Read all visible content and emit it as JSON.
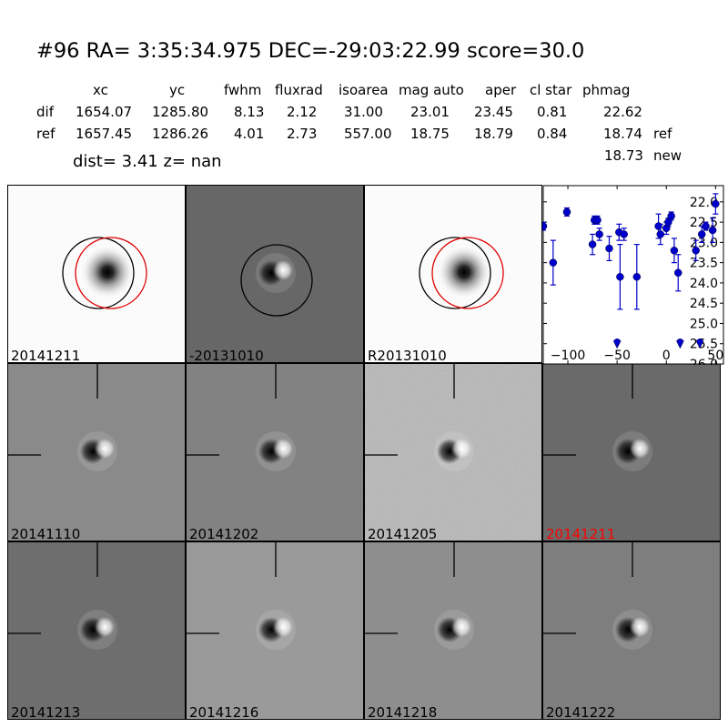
{
  "header": {
    "title": "#96   RA= 3:35:34.975 DEC=-29:03:22.99      score=30.0"
  },
  "table": {
    "columns": [
      "xc",
      "yc",
      "fwhm",
      "fluxrad",
      "isoarea",
      "mag auto",
      "aper",
      "cl star",
      "phmag"
    ],
    "rows": [
      {
        "label": "dif",
        "values": [
          "1654.07",
          "1285.80",
          "8.13",
          "2.12",
          "31.00",
          "23.01",
          "23.45",
          "0.81",
          "22.62"
        ],
        "suffix": ""
      },
      {
        "label": "ref",
        "values": [
          "1657.45",
          "1286.26",
          "4.01",
          "2.73",
          "557.00",
          "18.75",
          "18.79",
          "0.84",
          "18.74"
        ],
        "suffix": "ref"
      }
    ],
    "extra_row": {
      "value": "18.73",
      "suffix": "new"
    }
  },
  "dist_line": "dist=  3.41      z=   nan",
  "panels": [
    {
      "label": "20141211",
      "type": "ref",
      "label_color": "#000000"
    },
    {
      "label": "-20131010",
      "type": "diff-circle",
      "label_color": "#000000"
    },
    {
      "label": "R20131010",
      "type": "ref",
      "label_color": "#000000"
    },
    {
      "label": "20141110",
      "type": "diff",
      "label_color": "#000000"
    },
    {
      "label": "20141202",
      "type": "diff",
      "label_color": "#000000"
    },
    {
      "label": "20141205",
      "type": "diff-noisy",
      "label_color": "#000000"
    },
    {
      "label": "20141211",
      "type": "diff",
      "label_color": "#ff0000"
    },
    {
      "label": "20141213",
      "type": "diff",
      "label_color": "#000000"
    },
    {
      "label": "20141216",
      "type": "diff",
      "label_color": "#000000"
    },
    {
      "label": "20141218",
      "type": "diff-light",
      "label_color": "#000000"
    },
    {
      "label": "20141222",
      "type": "diff",
      "label_color": "#000000"
    }
  ],
  "chart_data": {
    "type": "scatter",
    "title": "",
    "xlabel": "",
    "ylabel": "",
    "xlim": [
      -125,
      58
    ],
    "ylim": [
      26.0,
      21.6
    ],
    "y_inverted": true,
    "xticks": [
      -100,
      -50,
      0,
      50
    ],
    "yticks": [
      22.0,
      22.5,
      23.0,
      23.5,
      24.0,
      24.5,
      25.0,
      25.5,
      26.0
    ],
    "ytick_labels": [
      "22.0",
      "22.5",
      "23.0",
      "23.5",
      "24.0",
      "24.5",
      "25.0",
      "25.5",
      "26.0"
    ],
    "color": "#0000cc",
    "points": [
      {
        "x": -125,
        "y": 22.6,
        "err": 0.1
      },
      {
        "x": -115,
        "y": 23.5,
        "err": 0.55
      },
      {
        "x": -101,
        "y": 22.25,
        "err": 0.1
      },
      {
        "x": -75,
        "y": 23.05,
        "err": 0.25
      },
      {
        "x": -73,
        "y": 22.45,
        "err": 0.1
      },
      {
        "x": -70,
        "y": 22.45,
        "err": 0.1
      },
      {
        "x": -68,
        "y": 22.8,
        "err": 0.15
      },
      {
        "x": -58,
        "y": 23.15,
        "err": 0.3
      },
      {
        "x": -48,
        "y": 22.75,
        "err": 0.2
      },
      {
        "x": -47,
        "y": 23.85,
        "err": 0.8
      },
      {
        "x": -43,
        "y": 22.8,
        "err": 0.15
      },
      {
        "x": -30,
        "y": 23.85,
        "err": 0.8
      },
      {
        "x": -8,
        "y": 22.6,
        "err": 0.3
      },
      {
        "x": -6,
        "y": 22.8,
        "err": 0.25
      },
      {
        "x": 0,
        "y": 22.65,
        "err": 0.15
      },
      {
        "x": 2,
        "y": 22.5,
        "err": 0.1
      },
      {
        "x": 5,
        "y": 22.35,
        "err": 0.1
      },
      {
        "x": 8,
        "y": 23.2,
        "err": 0.3
      },
      {
        "x": 12,
        "y": 23.75,
        "err": 0.45
      },
      {
        "x": 30,
        "y": 23.2,
        "err": 0.25
      },
      {
        "x": 36,
        "y": 22.8,
        "err": 0.2
      },
      {
        "x": 40,
        "y": 22.6,
        "err": 0.1
      },
      {
        "x": 47,
        "y": 22.7,
        "err": 0.3
      },
      {
        "x": 50,
        "y": 22.05,
        "err": 0.25
      }
    ],
    "upper_limits": [
      {
        "x": -50,
        "y": 25.5
      },
      {
        "x": 14,
        "y": 25.5
      },
      {
        "x": 34,
        "y": 25.5
      }
    ]
  }
}
